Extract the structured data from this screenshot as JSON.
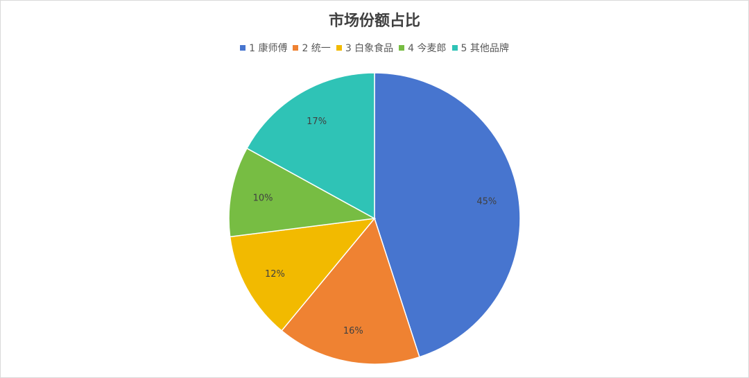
{
  "chart_data": {
    "type": "pie",
    "title": "市场份额占比",
    "categories": [
      "1 康师傅",
      "2 统一",
      "3 白象食品",
      "4 今麦郎",
      "5 其他品牌"
    ],
    "values": [
      45,
      16,
      12,
      10,
      17
    ],
    "labels": [
      "45%",
      "16%",
      "12%",
      "10%",
      "17%"
    ],
    "colors": [
      "#4775CF",
      "#EF8232",
      "#F2BA00",
      "#77BD43",
      "#2FC3B6"
    ],
    "legend_position": "top",
    "start_angle": "top, clockwise"
  }
}
